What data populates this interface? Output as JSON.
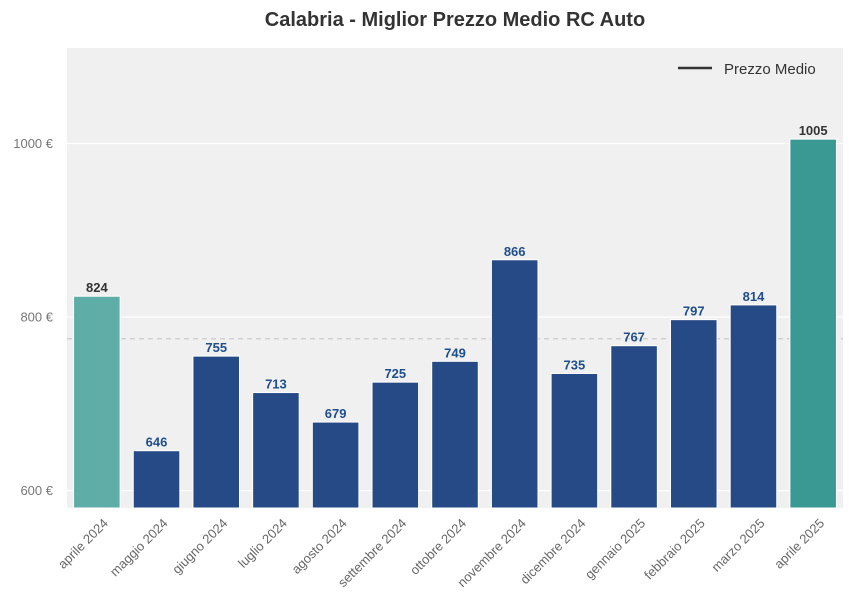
{
  "chart_data": {
    "type": "bar",
    "title": "Calabria - Miglior Prezzo Medio RC Auto",
    "xlabel": "",
    "ylabel": "",
    "categories": [
      "aprile 2024",
      "maggio 2024",
      "giugno 2024",
      "luglio 2024",
      "agosto 2024",
      "settembre 2024",
      "ottobre 2024",
      "novembre 2024",
      "dicembre 2024",
      "gennaio 2025",
      "febbraio 2025",
      "marzo 2025",
      "aprile 2025"
    ],
    "values": [
      824,
      646,
      755,
      713,
      679,
      725,
      749,
      866,
      735,
      767,
      797,
      814,
      1005
    ],
    "data_labels": [
      "824",
      "646",
      "755",
      "713",
      "679",
      "725",
      "749",
      "866",
      "735",
      "767",
      "797",
      "814",
      "1005"
    ],
    "bar_colors": [
      "#5fada7",
      "#254a86",
      "#254a86",
      "#254a86",
      "#254a86",
      "#254a86",
      "#254a86",
      "#254a86",
      "#254a86",
      "#254a86",
      "#254a86",
      "#254a86",
      "#3a9a93"
    ],
    "label_colors": [
      "#333333",
      "#1f4e8c",
      "#1f4e8c",
      "#1f4e8c",
      "#1f4e8c",
      "#1f4e8c",
      "#1f4e8c",
      "#1f4e8c",
      "#1f4e8c",
      "#1f4e8c",
      "#1f4e8c",
      "#1f4e8c",
      "#333333"
    ],
    "ylim": [
      580,
      1110
    ],
    "yticks": [
      {
        "value": 600,
        "label": "600 €"
      },
      {
        "value": 800,
        "label": "800 €"
      },
      {
        "value": 1000,
        "label": "1000 €"
      }
    ],
    "average_line": {
      "value": 775,
      "color": "#cccccc"
    },
    "legend": {
      "label": "Prezzo Medio",
      "position": "top-right",
      "color": "#333333"
    },
    "grid": true,
    "background": "#f0f0f0"
  }
}
